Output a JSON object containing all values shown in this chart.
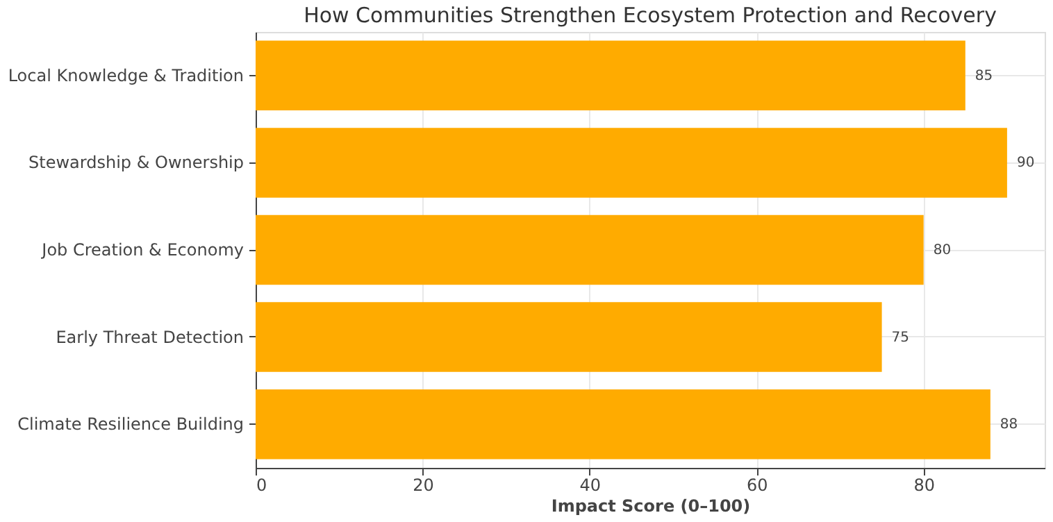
{
  "chart_data": {
    "type": "bar",
    "orientation": "horizontal",
    "title": "How Communities Strengthen Ecosystem Protection and Recovery",
    "xlabel": "Impact Score (0–100)",
    "categories": [
      "Local Knowledge & Tradition",
      "Stewardship & Ownership",
      "Job Creation & Economy",
      "Early Threat Detection",
      "Climate Resilience Building"
    ],
    "values": [
      85,
      90,
      80,
      75,
      88
    ],
    "color": "#ffab00",
    "xlim": [
      0,
      94.5
    ],
    "xticks": [
      0,
      20,
      40,
      60,
      80
    ],
    "grid": true,
    "data_labels": true
  }
}
